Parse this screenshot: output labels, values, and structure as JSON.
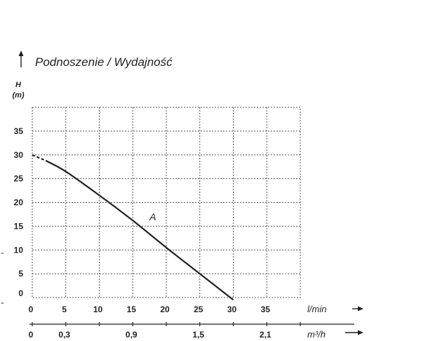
{
  "title": "Podnoszenie / Wydajność",
  "chart_data": {
    "type": "line",
    "title": "Podnoszenie / Wydajność",
    "ylabel": "H",
    "yunit": "(m)",
    "xlabel": "l/min",
    "x2label": "m³/h",
    "y_ticks": [
      0,
      5,
      10,
      15,
      20,
      25,
      30,
      35
    ],
    "x_ticks": [
      0,
      5,
      10,
      15,
      20,
      25,
      30,
      35
    ],
    "x2_ticks": [
      {
        "lmin": 0,
        "label": "0"
      },
      {
        "lmin": 5,
        "label": "0,3"
      },
      {
        "lmin": 15,
        "label": "0,9"
      },
      {
        "lmin": 25,
        "label": "1,5"
      },
      {
        "lmin": 35,
        "label": "2,1"
      }
    ],
    "xlim": [
      0,
      40
    ],
    "ylim": [
      0,
      40
    ],
    "grid": true,
    "series": [
      {
        "name": "A",
        "dashed_segment": [
          [
            0,
            30
          ],
          [
            2,
            28.8
          ]
        ],
        "x": [
          2,
          5,
          10,
          15,
          20,
          25,
          30
        ],
        "y": [
          28.8,
          26.5,
          21.5,
          16.2,
          10.5,
          5.0,
          -0.5
        ]
      }
    ]
  }
}
